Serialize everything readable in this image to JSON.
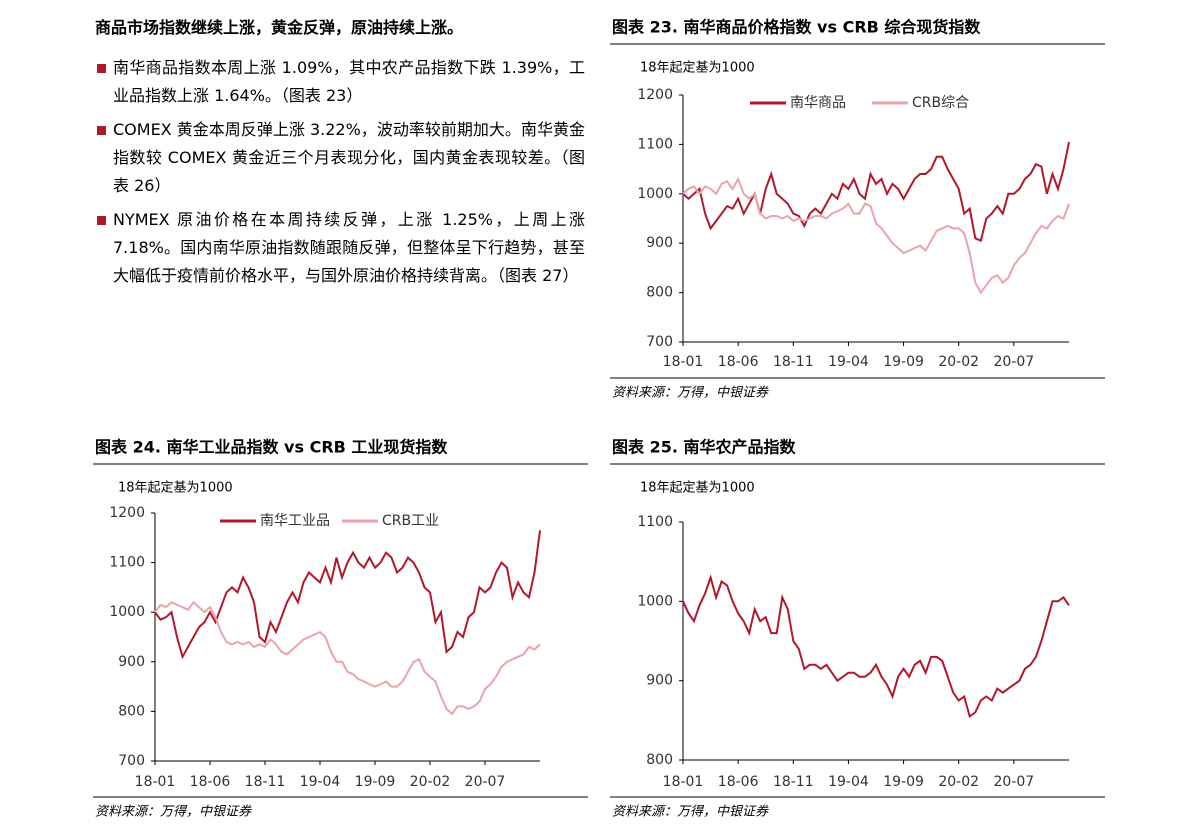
{
  "text": {
    "heading": "商品市场指数继续上涨，黄金反弹，原油持续上涨。",
    "bullets": [
      "南华商品指数本周上涨 1.09%，其中农产品指数下跌 1.39%，工业品指数上涨 1.64%。（图表 23）",
      "COMEX 黄金本周反弹上涨 3.22%，波动率较前期加大。南华黄金指数较 COMEX 黄金近三个月表现分化，国内黄金表现较差。（图表 26）",
      "NYMEX 原油价格在本周持续反弹，上涨 1.25%，上周上涨 7.18%。国内南华原油指数随跟随反弹，但整体呈下行趋势，甚至大幅低于疫情前价格水平，与国外原油价格持续背离。（图表 27）"
    ]
  },
  "chart_data": [
    {
      "type": "line",
      "title": "图表 23. 南华商品价格指数 vs CRB 综合现货指数",
      "subtitle": "18年起定基为1000",
      "source": "资料来源：万得，中银证券",
      "categories": [
        "18-01",
        null,
        null,
        null,
        null,
        null,
        null,
        null,
        null,
        null,
        "18-06",
        null,
        null,
        null,
        null,
        null,
        null,
        null,
        null,
        null,
        "18-11",
        null,
        null,
        null,
        null,
        null,
        null,
        null,
        null,
        null,
        "19-04",
        null,
        null,
        null,
        null,
        null,
        null,
        null,
        null,
        null,
        "19-09",
        null,
        null,
        null,
        null,
        null,
        null,
        null,
        null,
        null,
        "20-02",
        null,
        null,
        null,
        null,
        null,
        null,
        null,
        null,
        null,
        "20-07",
        null,
        null,
        null,
        null,
        null,
        null,
        null,
        null,
        null,
        null
      ],
      "ylim": [
        700,
        1200
      ],
      "yticks": [
        700,
        800,
        900,
        1000,
        1100,
        1200
      ],
      "legend": "top",
      "series": [
        {
          "name": "南华商品",
          "color": "#b0182b",
          "values": [
            1000,
            990,
            1000,
            1010,
            960,
            930,
            945,
            960,
            975,
            970,
            990,
            960,
            980,
            1000,
            960,
            1010,
            1040,
            1000,
            990,
            980,
            960,
            955,
            935,
            960,
            970,
            960,
            980,
            1000,
            990,
            1020,
            1010,
            1030,
            1000,
            990,
            1040,
            1020,
            1030,
            1000,
            1020,
            1010,
            990,
            1010,
            1030,
            1040,
            1040,
            1050,
            1075,
            1075,
            1050,
            1030,
            1010,
            960,
            970,
            910,
            905,
            950,
            960,
            975,
            960,
            1000,
            1000,
            1010,
            1030,
            1040,
            1060,
            1055,
            1000,
            1040,
            1010,
            1050,
            1105
          ]
        },
        {
          "name": "CRB综合",
          "color": "#eaa3a8",
          "values": [
            1000,
            1010,
            1015,
            1000,
            1015,
            1010,
            1000,
            1020,
            1025,
            1010,
            1030,
            1000,
            990,
            1000,
            960,
            950,
            955,
            955,
            950,
            955,
            945,
            950,
            945,
            950,
            955,
            955,
            950,
            960,
            965,
            970,
            980,
            960,
            960,
            980,
            975,
            940,
            930,
            915,
            900,
            890,
            880,
            885,
            890,
            895,
            885,
            905,
            925,
            930,
            935,
            930,
            930,
            920,
            880,
            820,
            800,
            815,
            830,
            835,
            820,
            830,
            855,
            870,
            880,
            900,
            920,
            935,
            930,
            945,
            955,
            950,
            980
          ]
        }
      ]
    },
    {
      "type": "line",
      "title": "图表 24. 南华工业品指数 vs CRB 工业现货指数",
      "subtitle": "18年起定基为1000",
      "source": "资料来源：万得，中银证券",
      "categories": [
        "18-01",
        null,
        null,
        null,
        null,
        null,
        null,
        null,
        null,
        null,
        "18-06",
        null,
        null,
        null,
        null,
        null,
        null,
        null,
        null,
        null,
        "18-11",
        null,
        null,
        null,
        null,
        null,
        null,
        null,
        null,
        null,
        "19-04",
        null,
        null,
        null,
        null,
        null,
        null,
        null,
        null,
        null,
        "19-09",
        null,
        null,
        null,
        null,
        null,
        null,
        null,
        null,
        null,
        "20-02",
        null,
        null,
        null,
        null,
        null,
        null,
        null,
        null,
        null,
        "20-07",
        null,
        null,
        null,
        null,
        null,
        null,
        null,
        null,
        null,
        null
      ],
      "ylim": [
        700,
        1200
      ],
      "yticks": [
        700,
        800,
        900,
        1000,
        1100,
        1200
      ],
      "legend": "top",
      "series": [
        {
          "name": "南华工业品",
          "color": "#b0182b",
          "values": [
            1000,
            985,
            990,
            1000,
            950,
            910,
            930,
            950,
            970,
            980,
            1000,
            980,
            1010,
            1040,
            1050,
            1040,
            1070,
            1050,
            1020,
            950,
            940,
            980,
            960,
            990,
            1020,
            1040,
            1020,
            1060,
            1080,
            1070,
            1060,
            1090,
            1060,
            1110,
            1070,
            1100,
            1120,
            1100,
            1090,
            1110,
            1090,
            1100,
            1120,
            1110,
            1080,
            1090,
            1110,
            1100,
            1080,
            1050,
            1040,
            980,
            1000,
            920,
            930,
            960,
            950,
            990,
            1000,
            1050,
            1040,
            1050,
            1080,
            1100,
            1090,
            1030,
            1060,
            1040,
            1030,
            1080,
            1165
          ]
        },
        {
          "name": "CRB工业",
          "color": "#eaa3a8",
          "values": [
            1000,
            1015,
            1010,
            1020,
            1015,
            1010,
            1005,
            1020,
            1010,
            1000,
            1010,
            990,
            960,
            940,
            935,
            940,
            935,
            940,
            930,
            935,
            930,
            945,
            935,
            920,
            915,
            925,
            935,
            945,
            950,
            955,
            960,
            950,
            920,
            900,
            900,
            880,
            875,
            865,
            860,
            855,
            850,
            855,
            860,
            850,
            850,
            860,
            880,
            900,
            905,
            880,
            870,
            860,
            830,
            805,
            795,
            810,
            810,
            805,
            810,
            820,
            845,
            855,
            870,
            890,
            900,
            905,
            910,
            915,
            930,
            925,
            935
          ]
        }
      ]
    },
    {
      "type": "line",
      "title": "图表 25. 南华农产品指数",
      "subtitle": "18年起定基为1000",
      "source": "资料来源：万得，中银证券",
      "categories": [
        "18-01",
        null,
        null,
        null,
        null,
        null,
        null,
        null,
        null,
        null,
        "18-06",
        null,
        null,
        null,
        null,
        null,
        null,
        null,
        null,
        null,
        "18-11",
        null,
        null,
        null,
        null,
        null,
        null,
        null,
        null,
        null,
        "19-04",
        null,
        null,
        null,
        null,
        null,
        null,
        null,
        null,
        null,
        "19-09",
        null,
        null,
        null,
        null,
        null,
        null,
        null,
        null,
        null,
        "20-02",
        null,
        null,
        null,
        null,
        null,
        null,
        null,
        null,
        null,
        "20-07",
        null,
        null,
        null,
        null,
        null,
        null,
        null,
        null,
        null,
        null
      ],
      "ylim": [
        800,
        1100
      ],
      "yticks": [
        800,
        900,
        1000,
        1100
      ],
      "series": [
        {
          "color": "#b0182b",
          "values": [
            1000,
            985,
            975,
            995,
            1010,
            1030,
            1005,
            1025,
            1020,
            1000,
            985,
            975,
            960,
            990,
            975,
            980,
            960,
            960,
            1005,
            990,
            950,
            940,
            915,
            920,
            920,
            915,
            920,
            910,
            900,
            905,
            910,
            910,
            905,
            905,
            910,
            920,
            905,
            895,
            880,
            905,
            915,
            905,
            920,
            925,
            910,
            930,
            930,
            925,
            905,
            885,
            875,
            880,
            855,
            860,
            875,
            880,
            875,
            890,
            885,
            890,
            895,
            900,
            915,
            920,
            930,
            950,
            975,
            1000,
            1000,
            1005,
            995
          ]
        }
      ]
    }
  ]
}
